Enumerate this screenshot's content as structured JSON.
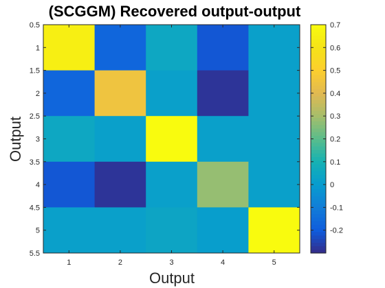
{
  "chart_data": {
    "type": "heatmap",
    "title": "(SCGGM) Recovered output-output",
    "xlabel": "Output",
    "ylabel": "Output",
    "x_categories": [
      "1",
      "2",
      "3",
      "4",
      "5"
    ],
    "y_categories": [
      "1",
      "2",
      "3",
      "4",
      "5"
    ],
    "x_tick_labels": [
      "1",
      "2",
      "3",
      "4",
      "5"
    ],
    "y_tick_labels": [
      "0.5",
      "1",
      "1.5",
      "2",
      "2.5",
      "3",
      "3.5",
      "4",
      "4.5",
      "5",
      "5.5"
    ],
    "y_ticks": [
      0.5,
      1,
      1.5,
      2,
      2.5,
      3,
      3.5,
      4,
      4.5,
      5,
      5.5
    ],
    "xlim": [
      0.5,
      5.5
    ],
    "ylim": [
      0.5,
      5.5
    ],
    "y_direction": "reversed",
    "values": [
      [
        0.65,
        -0.17,
        0.05,
        -0.21,
        0.02
      ],
      [
        -0.17,
        0.45,
        0.02,
        -0.28,
        0.02
      ],
      [
        0.05,
        0.02,
        0.7,
        0.02,
        0.02
      ],
      [
        -0.21,
        -0.28,
        0.02,
        0.28,
        0.02
      ],
      [
        0.02,
        0.02,
        0.04,
        0.01,
        0.7
      ]
    ],
    "colorbar": {
      "range": [
        -0.3,
        0.7
      ],
      "tick_values": [
        0.7,
        0.6,
        0.5,
        0.4,
        0.3,
        0.2,
        0.1,
        0,
        -0.1,
        -0.2
      ],
      "tick_labels": [
        "0.7",
        "0.6",
        "0.5",
        "0.4",
        "0.3",
        "0.2",
        "0.1",
        "0",
        "-0.1",
        "-0.2"
      ],
      "colormap": "parula",
      "placement": "right"
    }
  }
}
